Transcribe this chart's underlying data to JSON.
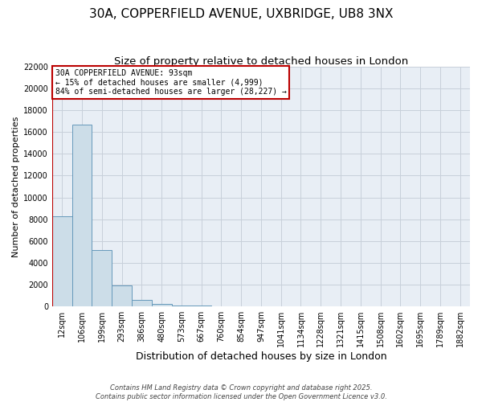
{
  "title": "30A, COPPERFIELD AVENUE, UXBRIDGE, UB8 3NX",
  "subtitle": "Size of property relative to detached houses in London",
  "xlabel": "Distribution of detached houses by size in London",
  "ylabel": "Number of detached properties",
  "categories": [
    "12sqm",
    "106sqm",
    "199sqm",
    "293sqm",
    "386sqm",
    "480sqm",
    "573sqm",
    "667sqm",
    "760sqm",
    "854sqm",
    "947sqm",
    "1041sqm",
    "1134sqm",
    "1228sqm",
    "1321sqm",
    "1415sqm",
    "1508sqm",
    "1602sqm",
    "1695sqm",
    "1789sqm",
    "1882sqm"
  ],
  "values": [
    8300,
    16700,
    5200,
    1900,
    580,
    220,
    90,
    45,
    22,
    12,
    7,
    4,
    3,
    2,
    1,
    1,
    1,
    1,
    1,
    1,
    1
  ],
  "bar_color": "#ccdde8",
  "bar_edge_color": "#6699bb",
  "vline_x": -0.5,
  "vline_color": "#bb0000",
  "annotation_text": "30A COPPERFIELD AVENUE: 93sqm\n← 15% of detached houses are smaller (4,999)\n84% of semi-detached houses are larger (28,227) →",
  "annotation_box_color": "#bb0000",
  "ylim": [
    0,
    22000
  ],
  "background_color": "#e8eef5",
  "grid_color": "#c8d0da",
  "footer_line1": "Contains HM Land Registry data © Crown copyright and database right 2025.",
  "footer_line2": "Contains public sector information licensed under the Open Government Licence v3.0.",
  "title_fontsize": 11,
  "subtitle_fontsize": 9.5,
  "ylabel_fontsize": 8,
  "xlabel_fontsize": 9,
  "tick_fontsize": 7
}
